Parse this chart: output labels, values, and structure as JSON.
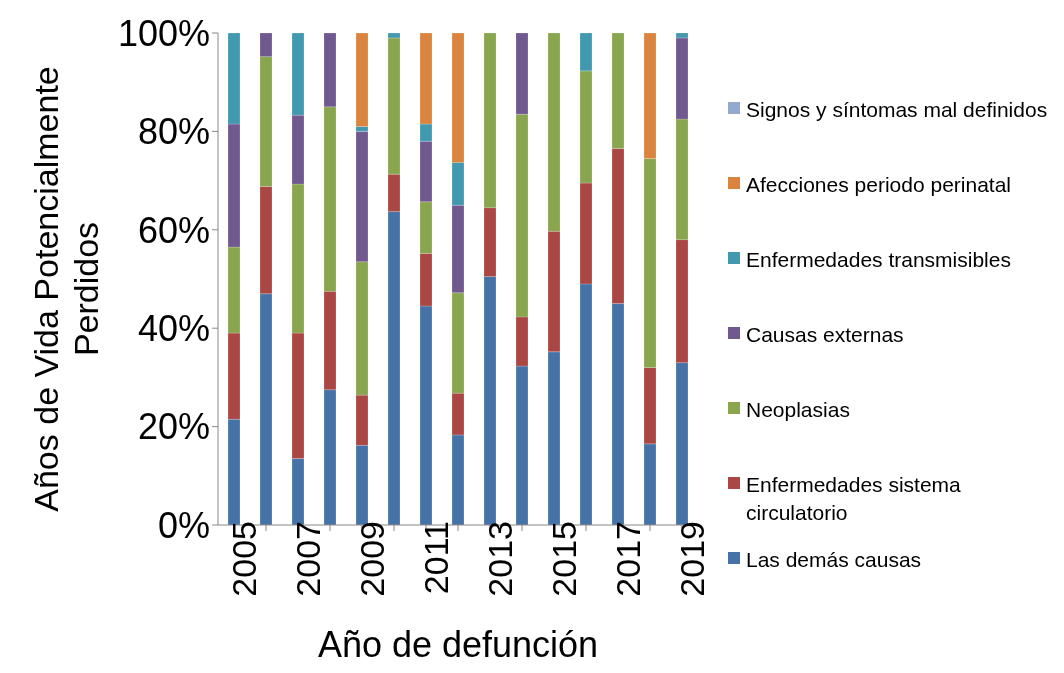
{
  "chart_data": {
    "type": "bar",
    "stacked": true,
    "xlabel": "Año de defunción",
    "ylabel": "Años de Vida Potencialmente Perdidos",
    "categories": [
      "2005",
      null,
      "2007",
      null,
      "2009",
      null,
      "2011",
      null,
      "2013",
      null,
      "2015",
      null,
      "2017",
      null,
      "2019"
    ],
    "ylim": [
      0,
      100
    ],
    "yticks": [
      {
        "value": 0,
        "label": "0%"
      },
      {
        "value": 20,
        "label": "20%"
      },
      {
        "value": 40,
        "label": "40%"
      },
      {
        "value": 60,
        "label": "60%"
      },
      {
        "value": 80,
        "label": "80%"
      },
      {
        "value": 100,
        "label": "100%"
      }
    ],
    "grid": false,
    "legend": "right",
    "series": [
      {
        "name": "Las demás causas",
        "color": "#4572a7",
        "values": [
          21.5,
          47,
          13.5,
          27.5,
          16.2,
          63.7,
          44.5,
          18.3,
          50.5,
          32.3,
          35.2,
          49,
          45,
          16.5,
          33
        ]
      },
      {
        "name": "Enfermedades sistema circulatorio",
        "color": "#aa4643",
        "values": [
          17.5,
          21.8,
          25.5,
          20,
          10.2,
          7.6,
          10.7,
          8.5,
          14,
          10,
          24.5,
          20.5,
          31.5,
          15.5,
          25
        ]
      },
      {
        "name": "Neoplasias",
        "color": "#89a54e",
        "values": [
          17.5,
          26.4,
          30.3,
          37.5,
          27.1,
          27.7,
          10.5,
          20.4,
          35.5,
          41.2,
          40.3,
          22.8,
          23.5,
          42.5,
          24.5
        ]
      },
      {
        "name": "Causas externas",
        "color": "#71588f",
        "values": [
          25,
          4.8,
          14,
          15,
          26.5,
          0,
          12.3,
          17.8,
          0,
          16.5,
          0,
          0,
          0,
          0,
          16.5
        ]
      },
      {
        "name": "Enfermedades transmisibles",
        "color": "#4198af",
        "values": [
          18.5,
          0,
          16.7,
          0,
          1,
          1,
          3.5,
          8.7,
          0,
          0,
          0,
          7.7,
          0,
          0,
          1
        ]
      },
      {
        "name": "Afecciones periodo perinatal",
        "color": "#db843d",
        "values": [
          0,
          0,
          0,
          0,
          19,
          0,
          18.5,
          26.3,
          0,
          0,
          0,
          0,
          0,
          25.5,
          0
        ]
      },
      {
        "name": "Signos y síntomas mal definidos",
        "color": "#93a9cf",
        "values": [
          0,
          0,
          0,
          0,
          0,
          0,
          0,
          0,
          0,
          0,
          0,
          0,
          0,
          0,
          0
        ]
      }
    ]
  }
}
